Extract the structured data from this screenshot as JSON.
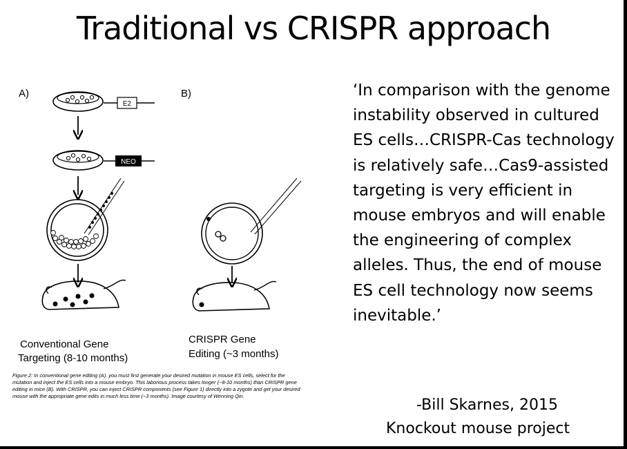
{
  "slide": {
    "title": "Traditional vs CRISPR approach",
    "figure": {
      "panel_a_label": "A)",
      "panel_b_label": "B)",
      "box_e2": "E2",
      "box_neo": "NEO",
      "label_a_line1": "Conventional Gene",
      "label_a_line2": "Targeting (8-10 months)",
      "label_b_line1": "CRISPR Gene",
      "label_b_line2": "Editing (~3 months)"
    },
    "caption": "Figure 2: In conventional gene editing (A), you must first generate your desired mutation in mouse ES cells, select for the mutation and inject the ES cells into a mouse embryo. This laborious process takes longer (~8-10 months) than CRISPR gene editing in mice (B). With CRISPR, you can inject CRISPR components (see Figure 1) directly into a zygote and get your desired mouse with the appropriate gene edits in much less time (~3 months). Image courtesy of Wenning Qin.",
    "quote": "‘In comparison with the genome instability observed in cultured ES cells…CRISPR-Cas technology is relatively safe…Cas9-assisted targeting is very efficient in mouse embryos and will enable the engineering of complex alleles. Thus, the end of mouse ES cell technology now seems inevitable.’",
    "attribution_name": "-Bill Skarnes, 2015",
    "attribution_project": "Knockout mouse project"
  }
}
